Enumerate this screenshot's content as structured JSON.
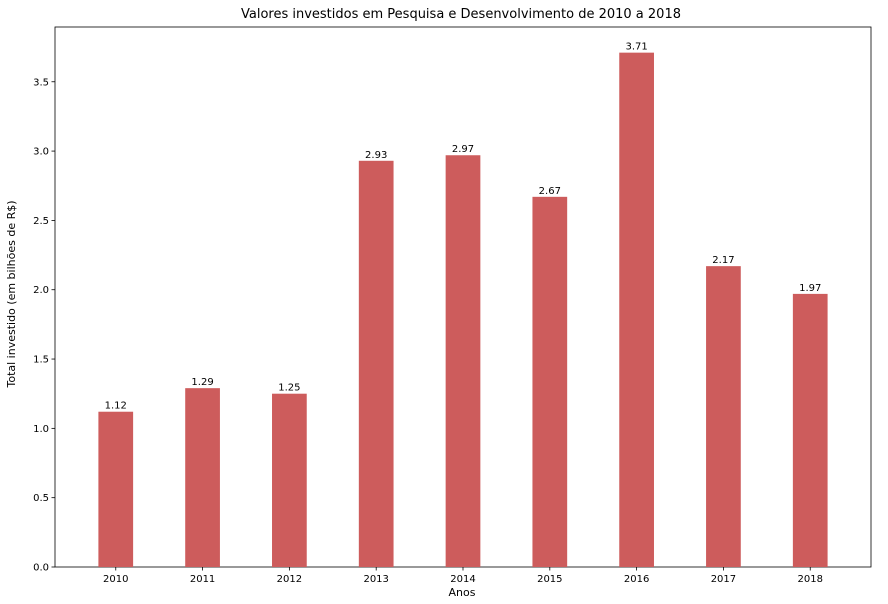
{
  "chart_data": {
    "type": "bar",
    "title": "Valores investidos em Pesquisa e Desenvolvimento de 2010 a 2018",
    "xlabel": "Anos",
    "ylabel": "Total investido (em bilhões de R$)",
    "categories": [
      "2010",
      "2011",
      "2012",
      "2013",
      "2014",
      "2015",
      "2016",
      "2017",
      "2018"
    ],
    "values": [
      1.12,
      1.29,
      1.25,
      2.93,
      2.97,
      2.67,
      3.71,
      2.17,
      1.97
    ],
    "data_labels": [
      "1.12",
      "1.29",
      "1.25",
      "2.93",
      "2.97",
      "2.67",
      "3.71",
      "2.17",
      "1.97"
    ],
    "yticks": [
      "0.0",
      "0.5",
      "1.0",
      "1.5",
      "2.0",
      "2.5",
      "3.0",
      "3.5"
    ],
    "ylim": [
      0,
      3.895
    ],
    "grid": false,
    "legend": false,
    "bar_color": "#cd5c5c",
    "axis_color": "#000000"
  }
}
